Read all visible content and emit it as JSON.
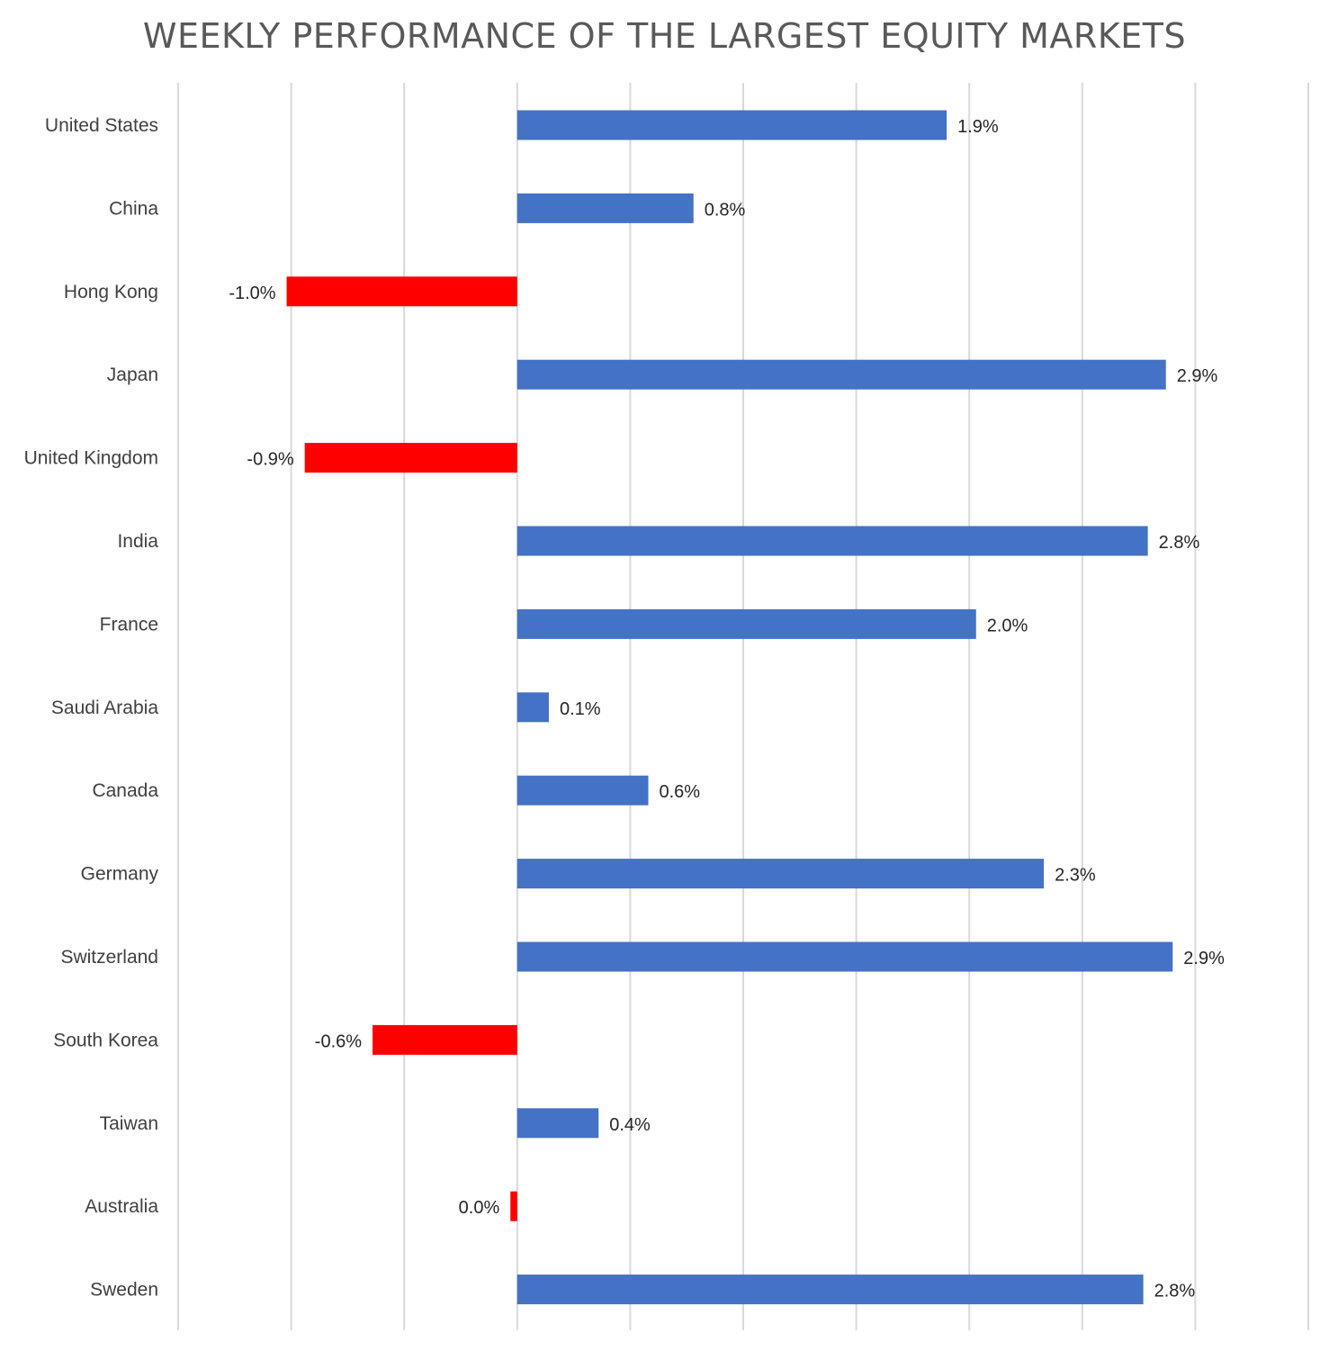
{
  "chart_data": {
    "type": "bar",
    "orientation": "horizontal",
    "title": "WEEKLY PERFORMANCE OF THE LARGEST EQUITY MARKETS",
    "xlim": [
      -1.5,
      3.5
    ],
    "grid": true,
    "categories": [
      "United States",
      "China",
      "Hong Kong",
      "Japan",
      "United Kingdom",
      "India",
      "France",
      "Saudi Arabia",
      "Canada",
      "Germany",
      "Switzerland",
      "South Korea",
      "Taiwan",
      "Australia",
      "Sweden"
    ],
    "values": [
      1.9,
      0.78,
      -1.02,
      2.87,
      -0.94,
      2.79,
      2.03,
      0.14,
      0.58,
      2.33,
      2.9,
      -0.64,
      0.36,
      -0.03,
      2.77
    ],
    "data_labels": [
      "1.9%",
      "0.8%",
      "-1.0%",
      "2.9%",
      "-0.9%",
      "2.8%",
      "2.0%",
      "0.1%",
      "0.6%",
      "2.3%",
      "2.9%",
      "-0.6%",
      "0.4%",
      "0.0%",
      "2.8%"
    ],
    "colors": {
      "positive": "#4472C4",
      "negative": "#FF0000"
    }
  }
}
